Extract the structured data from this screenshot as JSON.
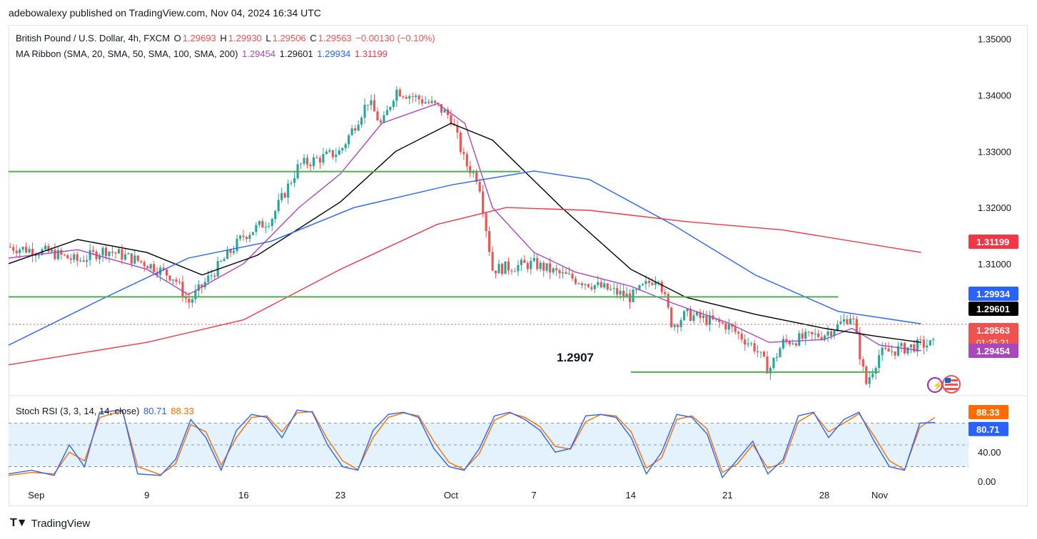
{
  "header": {
    "caption": "adebowalexy published on TradingView.com, Nov 04, 2024 16:34 UTC"
  },
  "legend": {
    "symbol": "British Pound / U.S. Dollar, 4h, FXCM",
    "ohlc": {
      "o_label": "O",
      "o": "1.29693",
      "h_label": "H",
      "h": "1.29930",
      "l_label": "L",
      "l": "1.29506",
      "c_label": "C",
      "c": "1.29563",
      "change": "−0.00130 (−0.10%)"
    },
    "ma_ribbon": {
      "label": "MA Ribbon (SMA, 20, SMA, 50, SMA, 100, SMA, 200)",
      "v20": "1.29454",
      "v50": "1.29601",
      "v100": "1.29934",
      "v200": "1.31199"
    },
    "stoch": {
      "label": "Stoch RSI (3, 3, 14, 14, close)",
      "k": "80.71",
      "d": "88.33"
    }
  },
  "annotation": {
    "support_label": "1.2907"
  },
  "footer": {
    "brand": "TradingView"
  },
  "colors": {
    "up": "#26a69a",
    "down": "#ef5350",
    "sma20": "#ab47bc",
    "sma50": "#000000",
    "sma100": "#2962ff",
    "sma200": "#f23645",
    "level": "#4caf50",
    "stoch_k": "#2962ff",
    "stoch_d": "#ff6d00",
    "stoch_band": "#e3f2fd"
  },
  "chart_data": [
    {
      "type": "line",
      "title": "British Pound / U.S. Dollar, 4h, FXCM",
      "x_ticks": [
        "Sep",
        "9",
        "16",
        "23",
        "Oct",
        "7",
        "14",
        "21",
        "28",
        "Nov"
      ],
      "y_ticks": [
        "1.35000",
        "1.34000",
        "1.33000",
        "1.32000",
        "1.31000"
      ],
      "ylim": [
        1.2865,
        1.3525
      ],
      "price_points": [
        [
          "Aug 30",
          1.313
        ],
        [
          "Sep 02",
          1.312
        ],
        [
          "Sep 04",
          1.3105
        ],
        [
          "Sep 06",
          1.3125
        ],
        [
          "Sep 09",
          1.31
        ],
        [
          "Sep 11",
          1.3075
        ],
        [
          "Sep 12",
          1.303
        ],
        [
          "Sep 13",
          1.306
        ],
        [
          "Sep 16",
          1.315
        ],
        [
          "Sep 18",
          1.318
        ],
        [
          "Sep 20",
          1.3275
        ],
        [
          "Sep 23",
          1.33
        ],
        [
          "Sep 25",
          1.339
        ],
        [
          "Sep 26",
          1.3345
        ],
        [
          "Sep 27",
          1.341
        ],
        [
          "Sep 30",
          1.338
        ],
        [
          "Oct 01",
          1.336
        ],
        [
          "Oct 02",
          1.328
        ],
        [
          "Oct 03",
          1.325
        ],
        [
          "Oct 04",
          1.309
        ],
        [
          "Oct 07",
          1.31
        ],
        [
          "Oct 09",
          1.308
        ],
        [
          "Oct 11",
          1.3065
        ],
        [
          "Oct 14",
          1.304
        ],
        [
          "Oct 16",
          1.308
        ],
        [
          "Oct 17",
          1.299
        ],
        [
          "Oct 18",
          1.301
        ],
        [
          "Oct 21",
          1.299
        ],
        [
          "Oct 23",
          1.295
        ],
        [
          "Oct 24",
          1.291
        ],
        [
          "Oct 25",
          1.296
        ],
        [
          "Oct 28",
          1.2975
        ],
        [
          "Oct 29",
          1.299
        ],
        [
          "Oct 30",
          1.301
        ],
        [
          "Oct 31",
          1.2885
        ],
        [
          "Nov 01",
          1.294
        ],
        [
          "Nov 04",
          1.2956
        ]
      ],
      "series": [
        {
          "name": "SMA 20",
          "points": [
            [
              "Aug 30",
              1.311
            ],
            [
              "Sep 04",
              1.3125
            ],
            [
              "Sep 09",
              1.309
            ],
            [
              "Sep 12",
              1.3045
            ],
            [
              "Sep 16",
              1.31
            ],
            [
              "Sep 20",
              1.32
            ],
            [
              "Sep 23",
              1.326
            ],
            [
              "Sep 26",
              1.335
            ],
            [
              "Sep 30",
              1.3385
            ],
            [
              "Oct 02",
              1.335
            ],
            [
              "Oct 04",
              1.32
            ],
            [
              "Oct 07",
              1.312
            ],
            [
              "Oct 10",
              1.3085
            ],
            [
              "Oct 14",
              1.306
            ],
            [
              "Oct 17",
              1.303
            ],
            [
              "Oct 21",
              1.2995
            ],
            [
              "Oct 24",
              1.296
            ],
            [
              "Oct 28",
              1.2965
            ],
            [
              "Oct 30",
              1.2985
            ],
            [
              "Nov 01",
              1.2955
            ],
            [
              "Nov 04",
              1.2945
            ]
          ]
        },
        {
          "name": "SMA 50",
          "points": [
            [
              "Aug 30",
              1.31
            ],
            [
              "Sep 04",
              1.3143
            ],
            [
              "Sep 09",
              1.312
            ],
            [
              "Sep 13",
              1.308
            ],
            [
              "Sep 17",
              1.3115
            ],
            [
              "Sep 23",
              1.321
            ],
            [
              "Sep 27",
              1.33
            ],
            [
              "Oct 01",
              1.335
            ],
            [
              "Oct 04",
              1.332
            ],
            [
              "Oct 09",
              1.32
            ],
            [
              "Oct 14",
              1.309
            ],
            [
              "Oct 18",
              1.304
            ],
            [
              "Oct 23",
              1.301
            ],
            [
              "Oct 28",
              1.2985
            ],
            [
              "Nov 01",
              1.297
            ],
            [
              "Nov 04",
              1.296
            ]
          ]
        },
        {
          "name": "SMA 100",
          "points": [
            [
              "Aug 30",
              1.2955
            ],
            [
              "Sep 06",
              1.304
            ],
            [
              "Sep 12",
              1.311
            ],
            [
              "Sep 18",
              1.314
            ],
            [
              "Sep 24",
              1.32
            ],
            [
              "Oct 01",
              1.324
            ],
            [
              "Oct 07",
              1.3265
            ],
            [
              "Oct 11",
              1.325
            ],
            [
              "Oct 17",
              1.317
            ],
            [
              "Oct 23",
              1.308
            ],
            [
              "Oct 29",
              1.3015
            ],
            [
              "Nov 04",
              1.2993
            ]
          ]
        },
        {
          "name": "SMA 200",
          "points": [
            [
              "Aug 30",
              1.292
            ],
            [
              "Sep 09",
              1.296
            ],
            [
              "Sep 16",
              1.3
            ],
            [
              "Sep 23",
              1.309
            ],
            [
              "Sep 30",
              1.317
            ],
            [
              "Oct 05",
              1.32
            ],
            [
              "Oct 11",
              1.3195
            ],
            [
              "Oct 18",
              1.3175
            ],
            [
              "Oct 25",
              1.316
            ],
            [
              "Nov 04",
              1.312
            ]
          ]
        }
      ],
      "horizontal_levels": [
        {
          "from": "Aug 30",
          "to": "Oct 06",
          "value": 1.3264
        },
        {
          "from": "Aug 30",
          "to": "Oct 29",
          "value": 1.3041
        },
        {
          "from": "Oct 14",
          "to": "Nov 01",
          "value": 1.2907
        }
      ],
      "price_labels": [
        {
          "value": "1.31199",
          "series": "SMA 200"
        },
        {
          "value": "1.29934",
          "series": "SMA 100"
        },
        {
          "value": "1.29601",
          "series": "SMA 50"
        },
        {
          "value": "1.29563",
          "series": "close",
          "timer": "01:25:21"
        },
        {
          "value": "1.29454",
          "series": "SMA 20"
        }
      ]
    },
    {
      "type": "line",
      "title": "Stoch RSI (3, 3, 14, 14, close)",
      "y_ticks": [
        "40.00",
        "0.00"
      ],
      "ylim": [
        -5,
        108
      ],
      "bands": [
        20,
        50,
        80
      ],
      "series": [
        {
          "name": "%K",
          "points": [
            [
              0,
              10
            ],
            [
              3,
              15
            ],
            [
              6,
              8
            ],
            [
              8,
              50
            ],
            [
              10,
              20
            ],
            [
              12,
              95
            ],
            [
              15,
              98
            ],
            [
              17,
              10
            ],
            [
              20,
              8
            ],
            [
              22,
              30
            ],
            [
              24,
              85
            ],
            [
              26,
              60
            ],
            [
              28,
              15
            ],
            [
              30,
              70
            ],
            [
              32,
              92
            ],
            [
              34,
              88
            ],
            [
              36,
              60
            ],
            [
              38,
              98
            ],
            [
              40,
              95
            ],
            [
              42,
              50
            ],
            [
              44,
              20
            ],
            [
              46,
              15
            ],
            [
              48,
              70
            ],
            [
              50,
              92
            ],
            [
              52,
              95
            ],
            [
              54,
              88
            ],
            [
              56,
              45
            ],
            [
              58,
              20
            ],
            [
              60,
              15
            ],
            [
              62,
              45
            ],
            [
              64,
              90
            ],
            [
              66,
              95
            ],
            [
              68,
              85
            ],
            [
              70,
              70
            ],
            [
              72,
              40
            ],
            [
              74,
              45
            ],
            [
              76,
              90
            ],
            [
              78,
              92
            ],
            [
              80,
              88
            ],
            [
              82,
              60
            ],
            [
              84,
              10
            ],
            [
              86,
              40
            ],
            [
              88,
              92
            ],
            [
              90,
              88
            ],
            [
              92,
              65
            ],
            [
              94,
              5
            ],
            [
              96,
              30
            ],
            [
              98,
              55
            ],
            [
              100,
              10
            ],
            [
              102,
              30
            ],
            [
              104,
              90
            ],
            [
              106,
              95
            ],
            [
              108,
              60
            ],
            [
              110,
              85
            ],
            [
              112,
              95
            ],
            [
              114,
              55
            ],
            [
              116,
              20
            ],
            [
              118,
              15
            ],
            [
              120,
              80
            ],
            [
              122,
              81
            ]
          ]
        },
        {
          "name": "%D",
          "points": [
            [
              0,
              8
            ],
            [
              3,
              12
            ],
            [
              6,
              10
            ],
            [
              8,
              40
            ],
            [
              10,
              28
            ],
            [
              12,
              88
            ],
            [
              15,
              97
            ],
            [
              17,
              20
            ],
            [
              20,
              9
            ],
            [
              22,
              24
            ],
            [
              24,
              78
            ],
            [
              26,
              68
            ],
            [
              28,
              22
            ],
            [
              30,
              60
            ],
            [
              32,
              88
            ],
            [
              34,
              90
            ],
            [
              36,
              68
            ],
            [
              38,
              94
            ],
            [
              40,
              96
            ],
            [
              42,
              58
            ],
            [
              44,
              28
            ],
            [
              46,
              16
            ],
            [
              48,
              60
            ],
            [
              50,
              88
            ],
            [
              52,
              94
            ],
            [
              54,
              90
            ],
            [
              56,
              55
            ],
            [
              58,
              26
            ],
            [
              60,
              16
            ],
            [
              62,
              38
            ],
            [
              64,
              84
            ],
            [
              66,
              94
            ],
            [
              68,
              88
            ],
            [
              70,
              75
            ],
            [
              72,
              48
            ],
            [
              74,
              44
            ],
            [
              76,
              82
            ],
            [
              78,
              92
            ],
            [
              80,
              90
            ],
            [
              82,
              68
            ],
            [
              84,
              18
            ],
            [
              86,
              32
            ],
            [
              88,
              85
            ],
            [
              90,
              90
            ],
            [
              92,
              72
            ],
            [
              94,
              12
            ],
            [
              96,
              24
            ],
            [
              98,
              50
            ],
            [
              100,
              18
            ],
            [
              102,
              25
            ],
            [
              104,
              82
            ],
            [
              106,
              94
            ],
            [
              108,
              68
            ],
            [
              110,
              80
            ],
            [
              112,
              93
            ],
            [
              114,
              62
            ],
            [
              116,
              28
            ],
            [
              118,
              16
            ],
            [
              120,
              74
            ],
            [
              122,
              88
            ]
          ]
        }
      ]
    }
  ]
}
